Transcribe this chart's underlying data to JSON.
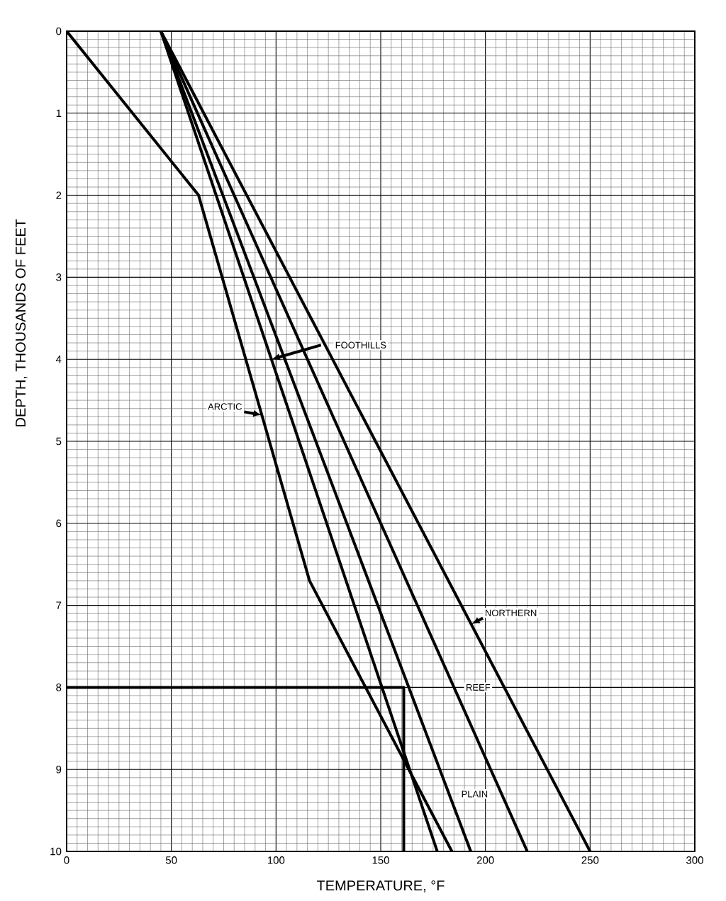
{
  "chart_data": {
    "type": "line",
    "xlabel": "TEMPERATURE, °F",
    "ylabel": "DEPTH, THOUSANDS OF FEET",
    "xlim": [
      0,
      300
    ],
    "ylim": [
      10,
      0
    ],
    "xticks": [
      0,
      50,
      100,
      150,
      200,
      250,
      300
    ],
    "yticks": [
      0,
      1,
      2,
      3,
      4,
      5,
      6,
      7,
      8,
      9,
      10
    ],
    "grid": true,
    "series": [
      {
        "name": "ARCTIC",
        "color": "#000000",
        "x": [
          0,
          63,
          116,
          184
        ],
        "values": [
          0,
          2,
          6.7,
          10
        ]
      },
      {
        "name": "PLAIN",
        "color": "#000000",
        "x": [
          45,
          193
        ],
        "values": [
          0,
          10
        ]
      },
      {
        "name": "FOOTHILLS",
        "color": "#000000",
        "x": [
          45,
          177
        ],
        "values": [
          0,
          10
        ]
      },
      {
        "name": "REEF",
        "color": "#000000",
        "x": [
          45,
          220
        ],
        "values": [
          0,
          10
        ]
      },
      {
        "name": "NORTHERN",
        "color": "#000000",
        "x": [
          45,
          250
        ],
        "values": [
          0,
          10
        ]
      },
      {
        "color": "#000000",
        "x": [
          0,
          161,
          161
        ],
        "values": [
          8,
          8,
          10
        ]
      }
    ]
  }
}
